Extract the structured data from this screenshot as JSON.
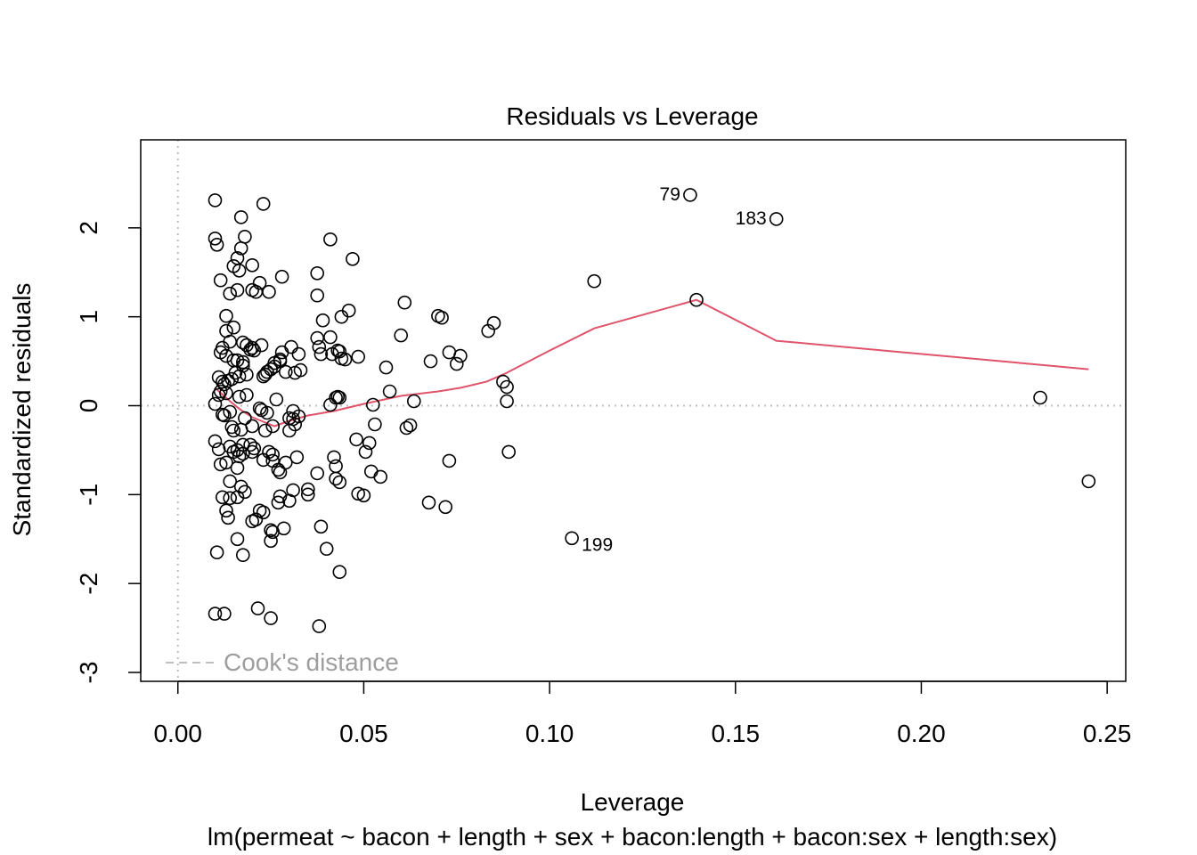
{
  "chart_data": {
    "type": "scatter",
    "title": "Residuals vs Leverage",
    "xlabel": "Leverage",
    "subtitle": "lm(permeat ~ bacon + length + sex + bacon:length + bacon:sex + length:sex)",
    "ylabel": "Standardized residuals",
    "xlim": [
      -0.01,
      0.255
    ],
    "ylim": [
      -3.1,
      2.99
    ],
    "x_ticks": [
      0.0,
      0.05,
      0.1,
      0.15,
      0.2,
      0.25
    ],
    "x_tick_labels": [
      "0.00",
      "0.05",
      "0.10",
      "0.15",
      "0.20",
      "0.25"
    ],
    "y_ticks": [
      -3,
      -2,
      -1,
      0,
      1,
      2
    ],
    "y_tick_labels": [
      "-3",
      "-2",
      "-1",
      "0",
      "1",
      "2"
    ],
    "legend": {
      "label": "Cook's distance",
      "position": "bottom-left"
    },
    "colors": {
      "points": "#000000",
      "smooth": "#DF536B",
      "reference": "#BEBEBE",
      "legend_text": "#9E9E9E"
    },
    "reference_lines": {
      "h": 0,
      "v": 0
    },
    "points": [
      [
        0.01,
        2.31
      ],
      [
        0.01,
        1.88
      ],
      [
        0.0105,
        1.81
      ],
      [
        0.0115,
        1.41
      ],
      [
        0.017,
        2.12
      ],
      [
        0.023,
        2.27
      ],
      [
        0.018,
        1.9
      ],
      [
        0.017,
        1.77
      ],
      [
        0.016,
        1.66
      ],
      [
        0.015,
        1.57
      ],
      [
        0.02,
        1.58
      ],
      [
        0.0165,
        1.52
      ],
      [
        0.014,
        1.26
      ],
      [
        0.016,
        1.3
      ],
      [
        0.02,
        1.3
      ],
      [
        0.021,
        1.28
      ],
      [
        0.022,
        1.38
      ],
      [
        0.028,
        1.45
      ],
      [
        0.0245,
        1.28
      ],
      [
        0.013,
        1.01
      ],
      [
        0.015,
        0.88
      ],
      [
        0.013,
        0.84
      ],
      [
        0.014,
        0.72
      ],
      [
        0.0175,
        0.71
      ],
      [
        0.0185,
        0.68
      ],
      [
        0.02,
        0.65
      ],
      [
        0.0225,
        0.68
      ],
      [
        0.0115,
        0.6
      ],
      [
        0.012,
        0.65
      ],
      [
        0.013,
        0.56
      ],
      [
        0.015,
        0.51
      ],
      [
        0.016,
        0.51
      ],
      [
        0.0175,
        0.49
      ],
      [
        0.0175,
        0.45
      ],
      [
        0.0195,
        0.63
      ],
      [
        0.0205,
        0.62
      ],
      [
        0.0155,
        0.37
      ],
      [
        0.0165,
        0.33
      ],
      [
        0.0185,
        0.35
      ],
      [
        0.0135,
        0.28
      ],
      [
        0.0125,
        0.24
      ],
      [
        0.011,
        0.32
      ],
      [
        0.012,
        0.27
      ],
      [
        0.0145,
        0.3
      ],
      [
        0.01,
        0.02
      ],
      [
        0.011,
        0.12
      ],
      [
        0.0115,
        0.16
      ],
      [
        0.013,
        0.14
      ],
      [
        0.0185,
        0.12
      ],
      [
        0.0165,
        0.1
      ],
      [
        0.023,
        0.33
      ],
      [
        0.0235,
        0.35
      ],
      [
        0.024,
        0.38
      ],
      [
        0.025,
        0.41
      ],
      [
        0.026,
        0.44
      ],
      [
        0.026,
        0.48
      ],
      [
        0.0275,
        0.5
      ],
      [
        0.0275,
        0.52
      ],
      [
        0.028,
        0.6
      ],
      [
        0.029,
        0.38
      ],
      [
        0.0305,
        0.66
      ],
      [
        0.0315,
        0.37
      ],
      [
        0.0325,
        0.58
      ],
      [
        0.033,
        0.4
      ],
      [
        0.012,
        -0.1
      ],
      [
        0.0125,
        -0.11
      ],
      [
        0.014,
        -0.07
      ],
      [
        0.0145,
        -0.24
      ],
      [
        0.015,
        -0.28
      ],
      [
        0.017,
        -0.27
      ],
      [
        0.018,
        -0.14
      ],
      [
        0.02,
        -0.23
      ],
      [
        0.022,
        -0.03
      ],
      [
        0.0225,
        -0.05
      ],
      [
        0.024,
        -0.08
      ],
      [
        0.0265,
        0.07
      ],
      [
        0.0235,
        -0.28
      ],
      [
        0.0255,
        -0.23
      ],
      [
        0.031,
        -0.06
      ],
      [
        0.03,
        -0.14
      ],
      [
        0.031,
        -0.15
      ],
      [
        0.0315,
        -0.21
      ],
      [
        0.0325,
        -0.12
      ],
      [
        0.03,
        -0.28
      ],
      [
        0.01,
        -0.4
      ],
      [
        0.011,
        -0.49
      ],
      [
        0.0115,
        -0.66
      ],
      [
        0.013,
        -0.64
      ],
      [
        0.014,
        -0.46
      ],
      [
        0.015,
        -0.52
      ],
      [
        0.016,
        -0.5
      ],
      [
        0.0165,
        -0.57
      ],
      [
        0.0175,
        -0.54
      ],
      [
        0.0175,
        -0.44
      ],
      [
        0.0195,
        -0.44
      ],
      [
        0.02,
        -0.52
      ],
      [
        0.0205,
        -0.48
      ],
      [
        0.023,
        -0.61
      ],
      [
        0.0245,
        -0.52
      ],
      [
        0.0255,
        -0.55
      ],
      [
        0.0255,
        -0.62
      ],
      [
        0.027,
        -0.72
      ],
      [
        0.0275,
        -0.75
      ],
      [
        0.029,
        -0.64
      ],
      [
        0.032,
        -0.58
      ],
      [
        0.016,
        -0.7
      ],
      [
        0.014,
        -0.85
      ],
      [
        0.017,
        -0.91
      ],
      [
        0.018,
        -0.97
      ],
      [
        0.012,
        -1.03
      ],
      [
        0.014,
        -1.04
      ],
      [
        0.016,
        -1.03
      ],
      [
        0.013,
        -1.18
      ],
      [
        0.0135,
        -1.26
      ],
      [
        0.02,
        -1.3
      ],
      [
        0.021,
        -1.28
      ],
      [
        0.022,
        -1.18
      ],
      [
        0.023,
        -1.2
      ],
      [
        0.025,
        -1.4
      ],
      [
        0.0255,
        -1.42
      ],
      [
        0.025,
        -1.52
      ],
      [
        0.027,
        -1.09
      ],
      [
        0.0275,
        -1.02
      ],
      [
        0.0285,
        -1.38
      ],
      [
        0.03,
        -1.07
      ],
      [
        0.031,
        -0.95
      ],
      [
        0.016,
        -1.5
      ],
      [
        0.0105,
        -1.65
      ],
      [
        0.0175,
        -1.68
      ],
      [
        0.01,
        -2.34
      ],
      [
        0.0125,
        -2.34
      ],
      [
        0.0215,
        -2.28
      ],
      [
        0.025,
        -2.39
      ],
      [
        0.038,
        -2.48
      ],
      [
        0.0385,
        -1.36
      ],
      [
        0.04,
        -1.61
      ],
      [
        0.0435,
        -1.87
      ],
      [
        0.035,
        -0.94
      ],
      [
        0.035,
        -1.0
      ],
      [
        0.0375,
        -0.76
      ],
      [
        0.042,
        -0.58
      ],
      [
        0.0425,
        -0.68
      ],
      [
        0.0425,
        -0.82
      ],
      [
        0.0435,
        -0.86
      ],
      [
        0.048,
        -0.38
      ],
      [
        0.0485,
        -0.99
      ],
      [
        0.05,
        -1.01
      ],
      [
        0.0505,
        -0.52
      ],
      [
        0.0515,
        -0.42
      ],
      [
        0.052,
        -0.74
      ],
      [
        0.0545,
        -0.8
      ],
      [
        0.053,
        -0.21
      ],
      [
        0.0525,
        0.01
      ],
      [
        0.0615,
        -0.25
      ],
      [
        0.0625,
        -0.22
      ],
      [
        0.0635,
        0.05
      ],
      [
        0.057,
        0.16
      ],
      [
        0.041,
        0.01
      ],
      [
        0.0425,
        0.09
      ],
      [
        0.043,
        0.1
      ],
      [
        0.0435,
        0.09
      ],
      [
        0.056,
        0.43
      ],
      [
        0.0485,
        0.55
      ],
      [
        0.044,
        0.53
      ],
      [
        0.0435,
        0.61
      ],
      [
        0.043,
        0.62
      ],
      [
        0.045,
        0.52
      ],
      [
        0.0415,
        0.58
      ],
      [
        0.041,
        0.77
      ],
      [
        0.0375,
        0.76
      ],
      [
        0.038,
        0.66
      ],
      [
        0.0385,
        0.58
      ],
      [
        0.039,
        0.96
      ],
      [
        0.0375,
        1.24
      ],
      [
        0.0375,
        1.49
      ],
      [
        0.041,
        1.87
      ],
      [
        0.047,
        1.65
      ],
      [
        0.046,
        1.07
      ],
      [
        0.044,
        1.0
      ],
      [
        0.061,
        1.16
      ],
      [
        0.06,
        0.79
      ],
      [
        0.07,
        1.01
      ],
      [
        0.071,
        0.99
      ],
      [
        0.068,
        0.5
      ],
      [
        0.073,
        0.6
      ],
      [
        0.075,
        0.47
      ],
      [
        0.076,
        0.56
      ],
      [
        0.0835,
        0.84
      ],
      [
        0.085,
        0.93
      ],
      [
        0.0875,
        0.27
      ],
      [
        0.0885,
        0.21
      ],
      [
        0.0885,
        0.05
      ],
      [
        0.089,
        -0.52
      ],
      [
        0.073,
        -0.62
      ],
      [
        0.0675,
        -1.09
      ],
      [
        0.072,
        -1.14
      ],
      [
        0.106,
        -1.49
      ],
      [
        0.112,
        1.4
      ],
      [
        0.1395,
        1.19
      ],
      [
        0.1378,
        2.37
      ],
      [
        0.161,
        2.1
      ],
      [
        0.232,
        0.09
      ],
      [
        0.245,
        -0.85
      ]
    ],
    "smooth_line": {
      "x": [
        0.0105,
        0.014,
        0.017,
        0.02,
        0.023,
        0.026,
        0.03,
        0.035,
        0.042,
        0.05,
        0.06,
        0.07,
        0.076,
        0.083,
        0.088,
        0.1,
        0.112,
        0.1395,
        0.161,
        0.232,
        0.245
      ],
      "y": [
        0.18,
        0.05,
        -0.05,
        -0.13,
        -0.18,
        -0.23,
        -0.17,
        -0.11,
        -0.06,
        0.02,
        0.11,
        0.16,
        0.2,
        0.27,
        0.36,
        0.62,
        0.87,
        1.19,
        0.73,
        0.46,
        0.41
      ]
    },
    "labeled_points": [
      {
        "label": "79",
        "x": 0.1378,
        "y": 2.37,
        "side": "left"
      },
      {
        "label": "183",
        "x": 0.161,
        "y": 2.1,
        "side": "left"
      },
      {
        "label": "199",
        "x": 0.106,
        "y": -1.49,
        "side": "right"
      }
    ]
  }
}
